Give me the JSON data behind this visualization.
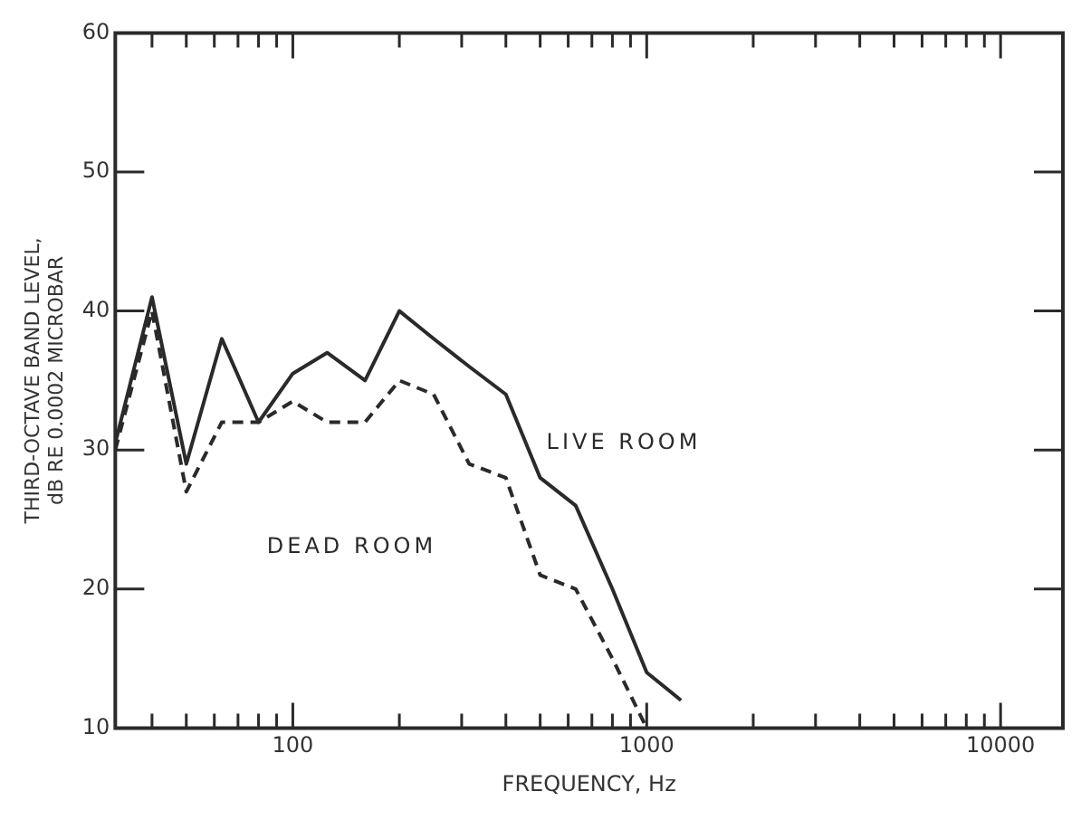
{
  "chart_data": {
    "type": "line",
    "xlabel": "FREQUENCY, Hz",
    "ylabel": "THIRD-OCTAVE BAND LEVEL,\ndB RE 0.0002 MICROBAR",
    "x": [
      31.5,
      40,
      50,
      63,
      80,
      100,
      125,
      160,
      200,
      250,
      315,
      400,
      500,
      630,
      800,
      1000,
      1250
    ],
    "series": [
      {
        "color": "#2a2a2a",
        "line_style": "solid",
        "values": [
          30.5,
          41,
          29,
          38,
          32,
          35.5,
          37,
          35,
          40,
          38,
          36,
          34,
          28,
          26,
          20,
          14,
          12
        ]
      },
      {
        "color": "#2a2a2a",
        "line_style": "dashed",
        "values": [
          30,
          40,
          27,
          32,
          32,
          33.5,
          32,
          32,
          35,
          34,
          29,
          28,
          21,
          20,
          15,
          10,
          null
        ]
      }
    ],
    "annotations": [
      "LIVE ROOM",
      "DEAD ROOM"
    ],
    "log": "x",
    "grid": false,
    "legend": false,
    "marker": "none",
    "xlim": [
      31.5,
      15000
    ],
    "xticks": [
      {
        "value": 40,
        "label": null
      },
      {
        "value": 50,
        "label": null
      },
      {
        "value": 60,
        "label": null
      },
      {
        "value": 70,
        "label": null
      },
      {
        "value": 80,
        "label": null
      },
      {
        "value": 90,
        "label": null
      },
      100,
      {
        "value": 200,
        "label": null
      },
      {
        "value": 300,
        "label": null
      },
      {
        "value": 400,
        "label": null
      },
      {
        "value": 500,
        "label": null
      },
      {
        "value": 600,
        "label": null
      },
      {
        "value": 700,
        "label": null
      },
      {
        "value": 800,
        "label": null
      },
      {
        "value": 900,
        "label": null
      },
      1000,
      {
        "value": 2000,
        "label": null
      },
      {
        "value": 3000,
        "label": null
      },
      {
        "value": 4000,
        "label": null
      },
      {
        "value": 5000,
        "label": null
      },
      {
        "value": 6000,
        "label": null
      },
      {
        "value": 7000,
        "label": null
      },
      {
        "value": 8000,
        "label": null
      },
      {
        "value": 9000,
        "label": null
      },
      10000
    ],
    "ylim": [
      10,
      60
    ],
    "yticks": [
      10,
      20,
      30,
      40,
      50,
      60
    ]
  }
}
